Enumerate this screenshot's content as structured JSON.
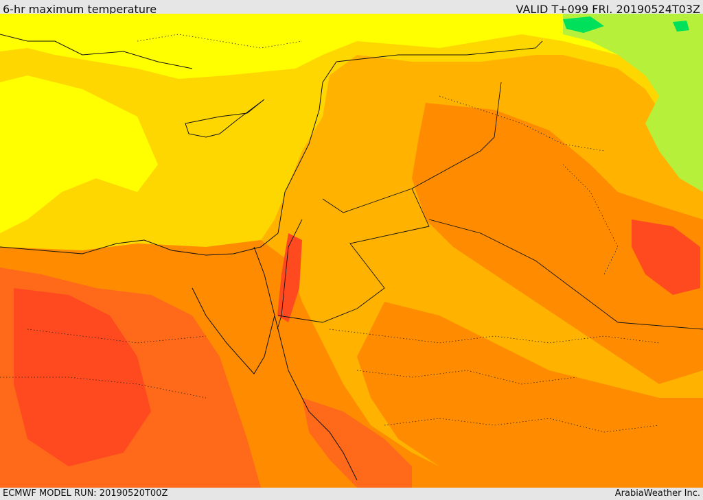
{
  "header": {
    "title": "6-hr maximum temperature",
    "valid": "VALID T+099 FRI. 20190524T03Z"
  },
  "footer": {
    "model_run": "ECMWF MODEL RUN: 20190520T00Z",
    "credit": "ArabiaWeather Inc."
  },
  "palette": {
    "cool_green": "#00e05a",
    "light_green": "#b6f03a",
    "yellow": "#ffff00",
    "gold": "#ffd700",
    "amber": "#ffb300",
    "orange": "#ff8c00",
    "dark_orange": "#ff6a1a",
    "red_orange": "#ff4a20"
  }
}
